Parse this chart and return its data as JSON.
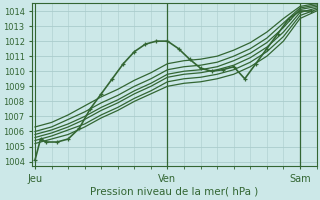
{
  "bg_color": "#cce8e8",
  "grid_color": "#aacccc",
  "line_color": "#336633",
  "title": "Pression niveau de la mer( hPa )",
  "xtick_labels": [
    "Jeu",
    "Ven",
    "Sam"
  ],
  "xtick_positions": [
    0,
    24,
    48
  ],
  "ylim": [
    1003.7,
    1014.5
  ],
  "yticks": [
    1004,
    1005,
    1006,
    1007,
    1008,
    1009,
    1010,
    1011,
    1012,
    1013,
    1014
  ],
  "xlim": [
    -0.5,
    51
  ],
  "series": [
    {
      "x": [
        0,
        1,
        2,
        4,
        6,
        8,
        10,
        12,
        14,
        16,
        18,
        20,
        22,
        24,
        26,
        28,
        30,
        32,
        34,
        36,
        38,
        40,
        42,
        44,
        46,
        48,
        50
      ],
      "y": [
        1004.1,
        1005.5,
        1005.3,
        1005.3,
        1005.5,
        1006.2,
        1007.5,
        1008.5,
        1009.5,
        1010.5,
        1011.3,
        1011.8,
        1012.0,
        1012.0,
        1011.5,
        1010.8,
        1010.2,
        1010.0,
        1010.1,
        1010.3,
        1009.5,
        1010.5,
        1011.5,
        1012.5,
        1013.5,
        1014.0,
        1014.0
      ],
      "marker": true,
      "lw": 1.2
    },
    {
      "x": [
        0,
        3,
        6,
        9,
        12,
        15,
        18,
        21,
        24,
        27,
        30,
        33,
        36,
        39,
        42,
        45,
        48,
        51
      ],
      "y": [
        1005.2,
        1005.5,
        1005.8,
        1006.3,
        1006.9,
        1007.4,
        1008.0,
        1008.5,
        1009.0,
        1009.2,
        1009.3,
        1009.5,
        1009.8,
        1010.3,
        1011.0,
        1012.0,
        1013.5,
        1014.0
      ],
      "marker": false,
      "lw": 0.9
    },
    {
      "x": [
        0,
        3,
        6,
        9,
        12,
        15,
        18,
        21,
        24,
        27,
        30,
        33,
        36,
        39,
        42,
        45,
        48,
        51
      ],
      "y": [
        1005.4,
        1005.7,
        1006.1,
        1006.5,
        1007.1,
        1007.6,
        1008.2,
        1008.7,
        1009.3,
        1009.5,
        1009.6,
        1009.8,
        1010.1,
        1010.6,
        1011.3,
        1012.3,
        1013.7,
        1014.1
      ],
      "marker": false,
      "lw": 0.9
    },
    {
      "x": [
        0,
        3,
        6,
        9,
        12,
        15,
        18,
        21,
        24,
        27,
        30,
        33,
        36,
        39,
        42,
        45,
        48,
        51
      ],
      "y": [
        1005.6,
        1005.9,
        1006.3,
        1006.8,
        1007.4,
        1007.9,
        1008.5,
        1009.0,
        1009.6,
        1009.8,
        1009.9,
        1010.1,
        1010.4,
        1010.9,
        1011.6,
        1012.6,
        1013.9,
        1014.2
      ],
      "marker": false,
      "lw": 0.9
    },
    {
      "x": [
        0,
        3,
        6,
        9,
        12,
        15,
        18,
        21,
        24,
        27,
        30,
        33,
        36,
        39,
        42,
        45,
        48,
        51
      ],
      "y": [
        1005.8,
        1006.1,
        1006.5,
        1007.0,
        1007.6,
        1008.1,
        1008.7,
        1009.2,
        1009.8,
        1010.0,
        1010.1,
        1010.3,
        1010.7,
        1011.2,
        1011.9,
        1012.9,
        1014.1,
        1014.3
      ],
      "marker": false,
      "lw": 0.9
    },
    {
      "x": [
        0,
        3,
        6,
        9,
        12,
        15,
        18,
        21,
        24,
        27,
        30,
        33,
        36,
        39,
        42,
        45,
        48,
        51
      ],
      "y": [
        1006.0,
        1006.3,
        1006.8,
        1007.3,
        1007.9,
        1008.4,
        1009.0,
        1009.5,
        1010.1,
        1010.3,
        1010.4,
        1010.6,
        1011.0,
        1011.5,
        1012.2,
        1013.2,
        1014.2,
        1014.4
      ],
      "marker": false,
      "lw": 0.9
    },
    {
      "x": [
        0,
        3,
        6,
        9,
        12,
        15,
        18,
        21,
        24,
        27,
        30,
        33,
        36,
        39,
        42,
        45,
        48,
        51
      ],
      "y": [
        1006.3,
        1006.6,
        1007.1,
        1007.7,
        1008.3,
        1008.8,
        1009.4,
        1009.9,
        1010.5,
        1010.7,
        1010.8,
        1011.0,
        1011.4,
        1011.9,
        1012.6,
        1013.5,
        1014.3,
        1014.5
      ],
      "marker": false,
      "lw": 0.9
    }
  ]
}
